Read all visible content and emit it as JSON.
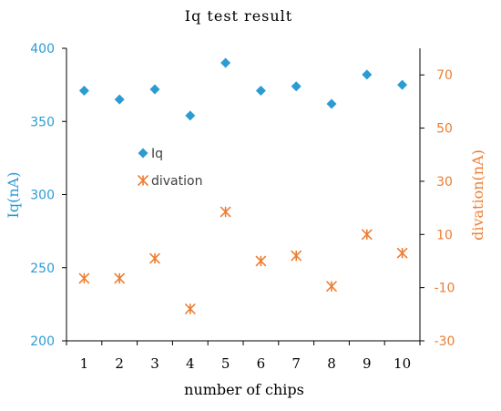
{
  "chart_data": {
    "type": "scatter",
    "title": "Iq test result",
    "xlabel": "number of chips",
    "ylabel_left": "Iq(nA)",
    "ylabel_right": "divation(nA)",
    "x": [
      1,
      2,
      3,
      4,
      5,
      6,
      7,
      8,
      9,
      10
    ],
    "xlim": [
      0.5,
      10.5
    ],
    "ylim_left": [
      200,
      400
    ],
    "yticks_left": [
      200,
      250,
      300,
      350,
      400
    ],
    "ylim_right": [
      -30,
      80
    ],
    "yticks_right": [
      -30,
      -10,
      10,
      30,
      50,
      70
    ],
    "grid": false,
    "legend_position": "middle-left",
    "series": [
      {
        "name": "Iq",
        "axis": "left",
        "marker": "diamond",
        "color": "#2b9bd3",
        "values": [
          371,
          365,
          372,
          354,
          390,
          371,
          374,
          362,
          382,
          375
        ]
      },
      {
        "name": "divation",
        "axis": "right",
        "marker": "asterisk",
        "color": "#ed7d31",
        "values": [
          -6.5,
          -6.5,
          1,
          -18,
          18.5,
          0,
          2,
          -9.5,
          10,
          3
        ]
      }
    ]
  },
  "colors": {
    "axis": "#000000",
    "left_axis_text": "#2b9bd3",
    "right_axis_text": "#ed7d31"
  }
}
